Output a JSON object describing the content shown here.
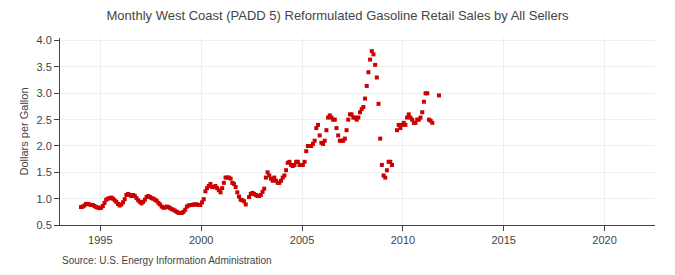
{
  "chart_data": {
    "type": "scatter",
    "title": "Monthly West Coast (PADD 5) Reformulated Gasoline Retail Sales by All Sellers",
    "y_label": "Dollars per Gallon",
    "annotations": [
      "Source: U.S. Energy Information Administration"
    ],
    "color": "#CC0000",
    "marker": "square",
    "grid": true,
    "xlim": [
      1993.0,
      2022.5
    ],
    "xticks": [
      1995,
      2000,
      2005,
      2010,
      2015,
      2020
    ],
    "ylim": [
      0.5,
      4.05
    ],
    "yticks": [
      0.5,
      {
        "value": 1.0,
        "label": "1.0"
      },
      1.5,
      {
        "value": 2.0,
        "label": "2.0"
      },
      2.5,
      {
        "value": 3.0,
        "label": "3.0"
      },
      3.5,
      {
        "value": 4.0,
        "label": "4.0"
      }
    ],
    "x": [
      1994.0416666666667,
      1994.125,
      1994.2083333333333,
      1994.2916666666667,
      1994.375,
      1994.4583333333333,
      1994.5416666666667,
      1994.625,
      1994.7083333333333,
      1994.7916666666667,
      1994.875,
      1994.9583333333333,
      1995.0416666666667,
      1995.125,
      1995.2083333333333,
      1995.2916666666667,
      1995.375,
      1995.4583333333333,
      1995.5416666666667,
      1995.625,
      1995.7083333333333,
      1995.7916666666667,
      1995.875,
      1995.9583333333333,
      1996.0416666666667,
      1996.125,
      1996.2083333333333,
      1996.2916666666667,
      1996.375,
      1996.4583333333333,
      1996.5416666666667,
      1996.625,
      1996.7083333333333,
      1996.7916666666667,
      1996.875,
      1996.9583333333333,
      1997.0416666666667,
      1997.125,
      1997.2083333333333,
      1997.2916666666667,
      1997.375,
      1997.4583333333333,
      1997.5416666666667,
      1997.625,
      1997.7083333333333,
      1997.7916666666667,
      1997.875,
      1997.9583333333333,
      1998.0416666666667,
      1998.125,
      1998.2083333333333,
      1998.2916666666667,
      1998.375,
      1998.4583333333333,
      1998.5416666666667,
      1998.625,
      1998.7083333333333,
      1998.7916666666667,
      1998.875,
      1998.9583333333333,
      1999.0416666666667,
      1999.125,
      1999.2083333333333,
      1999.2916666666667,
      1999.375,
      1999.4583333333333,
      1999.5416666666667,
      1999.625,
      1999.7083333333333,
      1999.7916666666667,
      1999.875,
      1999.9583333333333,
      2000.0416666666667,
      2000.125,
      2000.2083333333333,
      2000.2916666666667,
      2000.375,
      2000.4583333333333,
      2000.5416666666667,
      2000.625,
      2000.7083333333333,
      2000.7916666666667,
      2000.875,
      2000.9583333333333,
      2001.0416666666667,
      2001.125,
      2001.2083333333333,
      2001.2916666666667,
      2001.375,
      2001.4583333333333,
      2001.5416666666667,
      2001.625,
      2001.7083333333333,
      2001.7916666666667,
      2001.875,
      2001.9583333333333,
      2002.0416666666667,
      2002.125,
      2002.2083333333333,
      2002.375,
      2002.4583333333333,
      2002.5416666666667,
      2002.625,
      2002.7083333333333,
      2002.7916666666667,
      2002.875,
      2002.9583333333333,
      2003.0416666666667,
      2003.125,
      2003.2083333333333,
      2003.2916666666667,
      2003.375,
      2003.4583333333333,
      2003.5416666666667,
      2003.625,
      2003.7083333333333,
      2003.7916666666667,
      2003.875,
      2003.9583333333333,
      2004.0416666666667,
      2004.125,
      2004.2083333333333,
      2004.2916666666667,
      2004.375,
      2004.4583333333333,
      2004.5416666666667,
      2004.625,
      2004.7083333333333,
      2004.7916666666667,
      2004.875,
      2004.9583333333333,
      2005.0416666666667,
      2005.125,
      2005.2083333333333,
      2005.2916666666667,
      2005.375,
      2005.4583333333333,
      2005.5416666666667,
      2005.625,
      2005.7083333333333,
      2005.7916666666667,
      2005.875,
      2005.9583333333333,
      2006.0416666666667,
      2006.125,
      2006.2083333333333,
      2006.2916666666667,
      2006.375,
      2006.4583333333333,
      2006.5416666666667,
      2006.625,
      2006.7083333333333,
      2006.7916666666667,
      2006.875,
      2006.9583333333333,
      2007.0416666666667,
      2007.125,
      2007.2083333333333,
      2007.2916666666667,
      2007.375,
      2007.4583333333333,
      2007.5416666666667,
      2007.625,
      2007.7083333333333,
      2007.7916666666667,
      2007.875,
      2007.9583333333333,
      2008.0416666666667,
      2008.125,
      2008.2083333333333,
      2008.2916666666667,
      2008.375,
      2008.4583333333333,
      2008.5416666666667,
      2008.625,
      2008.7083333333333,
      2008.7916666666667,
      2008.875,
      2008.9583333333333,
      2009.0416666666667,
      2009.125,
      2009.2083333333333,
      2009.2916666666667,
      2009.375,
      2009.4583333333333,
      2009.7083333333333,
      2009.7916666666667,
      2009.875,
      2009.9583333333333,
      2010.0416666666667,
      2010.125,
      2010.2083333333333,
      2010.2916666666667,
      2010.375,
      2010.4583333333333,
      2010.5416666666667,
      2010.625,
      2010.7083333333333,
      2010.7916666666667,
      2010.875,
      2010.9583333333333,
      2011.0416666666667,
      2011.125,
      2011.2083333333333,
      2011.2916666666667,
      2011.375,
      2011.4583333333333,
      2011.7916666666667
    ],
    "values": [
      0.84,
      0.85,
      0.87,
      0.9,
      0.9,
      0.89,
      0.88,
      0.88,
      0.86,
      0.84,
      0.83,
      0.82,
      0.83,
      0.86,
      0.92,
      0.98,
      1.0,
      1.01,
      1.02,
      1.0,
      0.97,
      0.94,
      0.9,
      0.87,
      0.89,
      0.93,
      0.99,
      1.07,
      1.09,
      1.07,
      1.05,
      1.07,
      1.05,
      1.01,
      0.97,
      0.94,
      0.91,
      0.94,
      0.98,
      1.03,
      1.05,
      1.03,
      1.01,
      1.0,
      0.98,
      0.96,
      0.92,
      0.89,
      0.85,
      0.83,
      0.83,
      0.85,
      0.84,
      0.82,
      0.8,
      0.79,
      0.77,
      0.75,
      0.73,
      0.73,
      0.73,
      0.75,
      0.79,
      0.85,
      0.87,
      0.88,
      0.88,
      0.89,
      0.89,
      0.89,
      0.88,
      0.88,
      0.93,
      0.99,
      1.14,
      1.2,
      1.24,
      1.28,
      1.22,
      1.22,
      1.24,
      1.2,
      1.16,
      1.12,
      1.2,
      1.3,
      1.4,
      1.4,
      1.4,
      1.38,
      1.3,
      1.28,
      1.22,
      1.12,
      1.04,
      0.98,
      0.97,
      0.95,
      0.89,
      1.03,
      1.09,
      1.11,
      1.09,
      1.07,
      1.05,
      1.05,
      1.07,
      1.13,
      1.19,
      1.4,
      1.5,
      1.44,
      1.38,
      1.34,
      1.4,
      1.34,
      1.3,
      1.3,
      1.34,
      1.4,
      1.44,
      1.54,
      1.68,
      1.7,
      1.64,
      1.62,
      1.64,
      1.7,
      1.7,
      1.64,
      1.64,
      1.64,
      1.7,
      1.9,
      2.0,
      2.0,
      2.0,
      2.04,
      2.1,
      2.34,
      2.4,
      2.2,
      2.06,
      2.04,
      2.1,
      2.3,
      2.54,
      2.58,
      2.54,
      2.5,
      2.5,
      2.34,
      2.2,
      2.1,
      2.1,
      2.1,
      2.14,
      2.3,
      2.5,
      2.6,
      2.6,
      2.54,
      2.54,
      2.5,
      2.54,
      2.64,
      2.7,
      2.74,
      2.9,
      3.14,
      3.4,
      3.64,
      3.8,
      3.74,
      3.54,
      3.3,
      2.8,
      2.14,
      1.64,
      1.44,
      1.4,
      1.54,
      1.7,
      1.7,
      1.64,
      2.3,
      2.4,
      2.34,
      2.4,
      2.44,
      2.4,
      2.54,
      2.6,
      2.54,
      2.5,
      2.44,
      2.44,
      2.5,
      2.5,
      2.54,
      2.64,
      2.84,
      3.0,
      3.0,
      2.5,
      2.48,
      2.44,
      2.96
    ]
  }
}
